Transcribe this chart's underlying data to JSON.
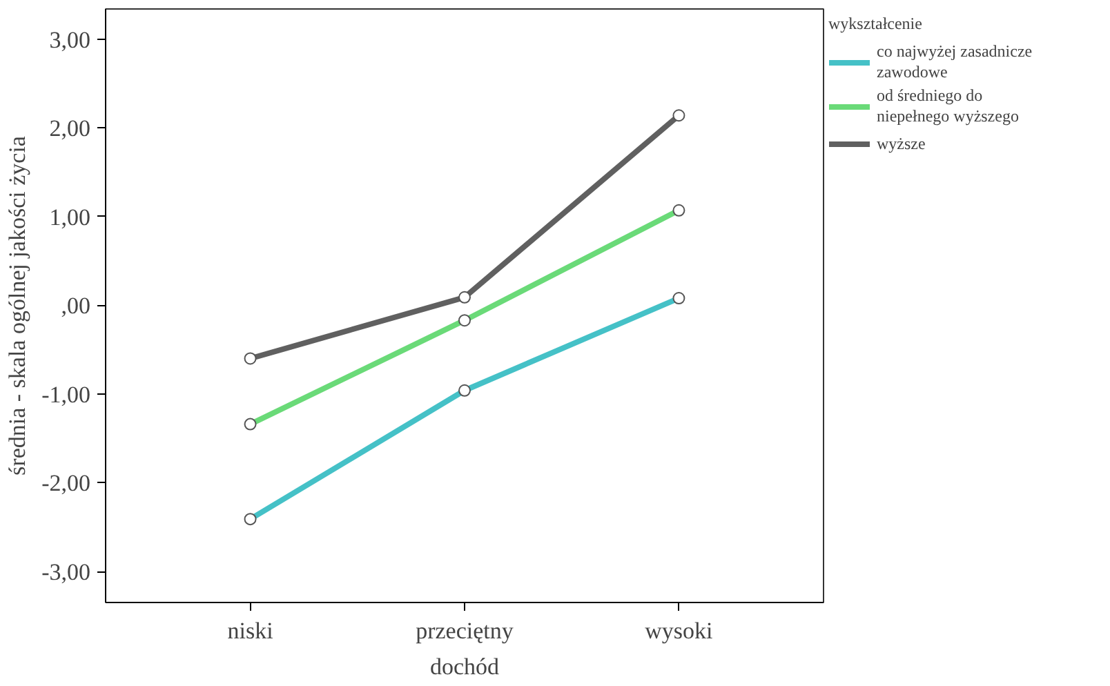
{
  "chart_data": {
    "type": "line",
    "xlabel": "dochód",
    "ylabel": "średnia - skala ogólnej jakości życia",
    "legend_title": "wykształcenie",
    "categories": [
      "niski",
      "przeciętny",
      "wysoki"
    ],
    "series": [
      {
        "name": "co najwyżej zasadnicze zawodowe",
        "color": "#45c1c7",
        "values": [
          -2.41,
          -0.96,
          0.08
        ]
      },
      {
        "name": "od średniego do niepełnego wyższego",
        "color": "#6ada78",
        "values": [
          -1.34,
          -0.17,
          1.07
        ]
      },
      {
        "name": "wyższe",
        "color": "#606060",
        "values": [
          -0.6,
          0.09,
          2.14
        ]
      }
    ],
    "ylim": [
      -3.35,
      3.34
    ],
    "yticks": [
      {
        "value": -3,
        "label": "-3,00"
      },
      {
        "value": -2,
        "label": "-2,00"
      },
      {
        "value": -1,
        "label": "-1,00"
      },
      {
        "value": 0,
        "label": ",00"
      },
      {
        "value": 1,
        "label": "1,00"
      },
      {
        "value": 2,
        "label": "2,00"
      },
      {
        "value": 3,
        "label": "3,00"
      }
    ],
    "marker": "circle",
    "line_style": "solid",
    "grid": false,
    "legend": "top right"
  }
}
